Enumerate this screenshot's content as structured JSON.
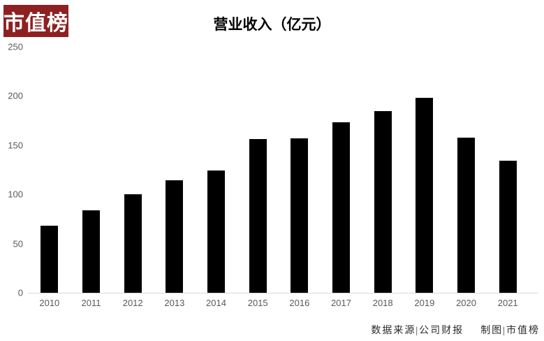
{
  "logo": {
    "text": "市值榜",
    "bg_color": "#8e2022",
    "text_color": "#ffffff"
  },
  "chart_data": {
    "type": "bar",
    "title": "营业收入（亿元）",
    "categories": [
      "2010",
      "2011",
      "2012",
      "2013",
      "2014",
      "2015",
      "2016",
      "2017",
      "2018",
      "2019",
      "2020",
      "2021"
    ],
    "values": [
      68,
      84,
      100,
      114,
      124,
      156,
      157,
      173,
      185,
      198,
      158,
      134
    ],
    "xlabel": "",
    "ylabel": "",
    "ylim": [
      0,
      250
    ],
    "yticks": [
      0,
      50,
      100,
      150,
      200,
      250
    ],
    "grid": false,
    "legend": false,
    "bar_color": "#000000",
    "tick_label_color": "#595959",
    "axis_line_color": "#d9d9d9"
  },
  "footer": {
    "source": "数据来源|公司财报",
    "credit": "制图|市值榜"
  }
}
